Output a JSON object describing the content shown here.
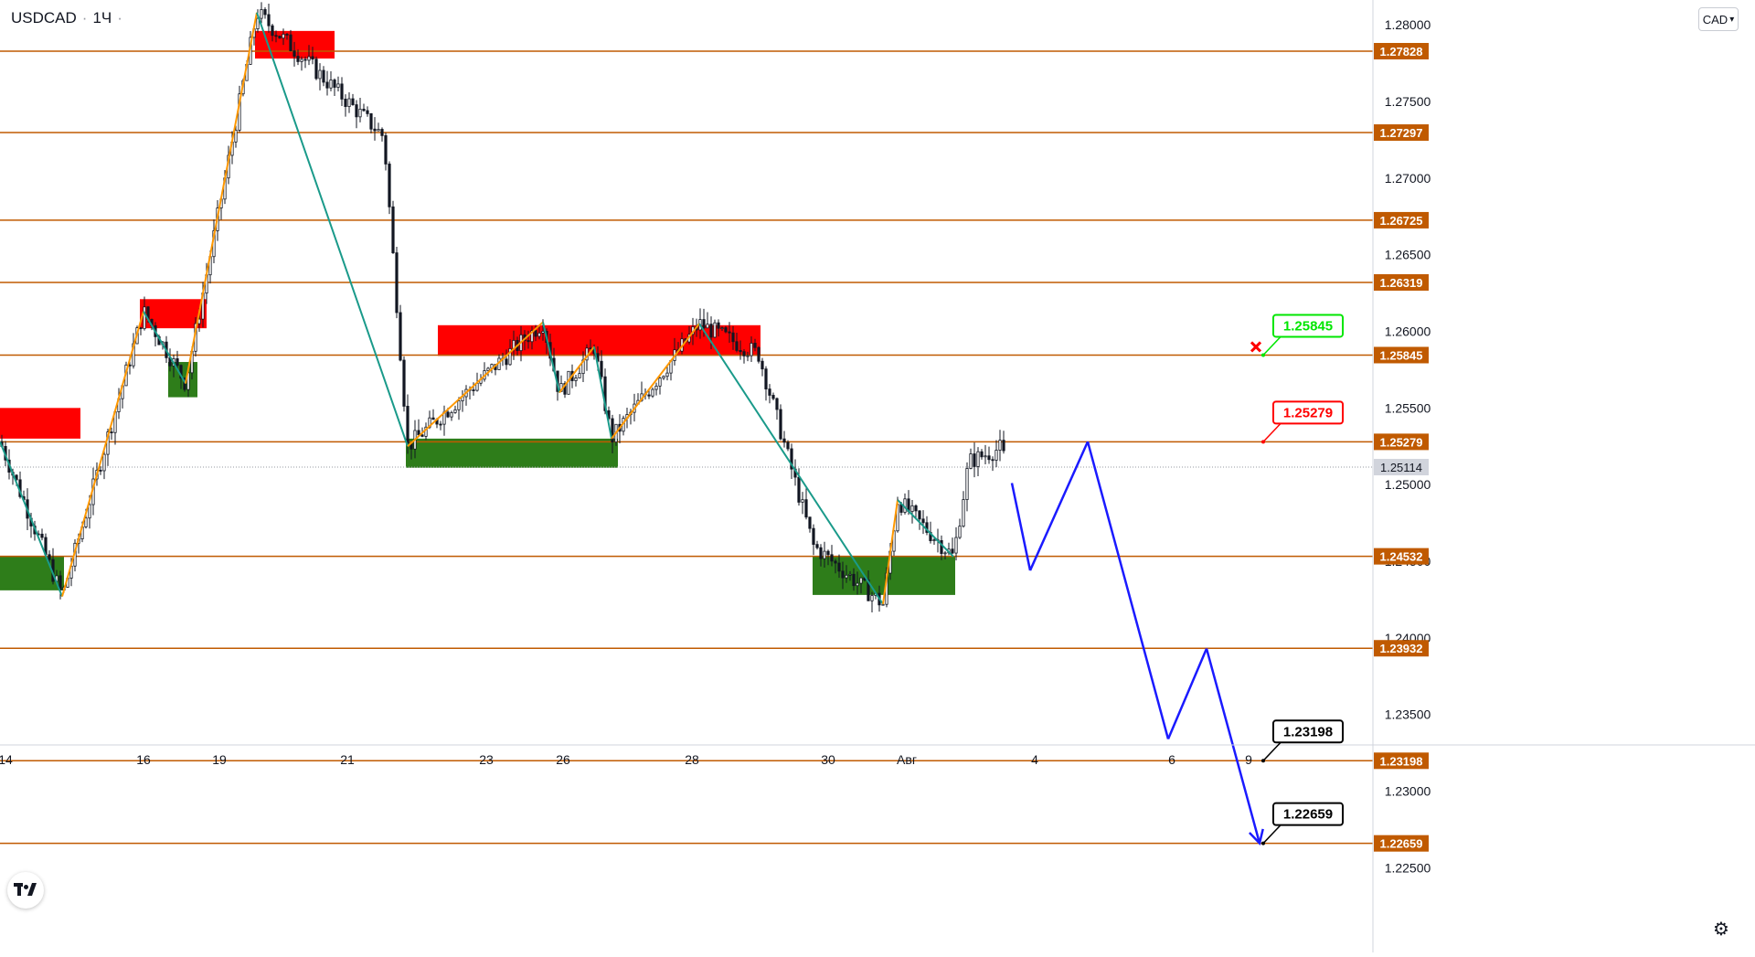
{
  "header": {
    "symbol": "USDCAD",
    "separator": "·",
    "interval": "1Ч",
    "dot_after": "·",
    "currency": "CAD",
    "currency_caret": "▾"
  },
  "colors": {
    "level_line": "#c05a00",
    "level_label_bg": "#c05a00",
    "supply_zone": "#ff0000",
    "demand_zone": "#2e7d1a",
    "zigzag_up": "#ff9800",
    "zigzag_down": "#1a9a8a",
    "forecast": "#1a1aff",
    "candle": "#131722",
    "current_price_bg": "#d1d4dc"
  },
  "chart_data": {
    "type": "candlestick",
    "title": "USDCAD · 1Ч",
    "ylim": [
      1.2218,
      1.2815
    ],
    "x_ticks": [
      "14",
      "16",
      "19",
      "21",
      "23",
      "26",
      "28",
      "30",
      "Авг",
      "4",
      "6",
      "9"
    ],
    "y_ticks": [
      "1.28000",
      "1.27500",
      "1.27000",
      "1.26500",
      "1.26000",
      "1.25500",
      "1.25000",
      "1.24500",
      "1.24000",
      "1.23500",
      "1.23000",
      "1.22500"
    ],
    "horizontal_levels": [
      "1.27828",
      "1.27297",
      "1.26725",
      "1.26319",
      "1.25845",
      "1.25279",
      "1.24532",
      "1.23932",
      "1.23198",
      "1.22659"
    ],
    "current_price": "1.25114",
    "targets": [
      {
        "label": "1.25845",
        "color": "#00e600",
        "level": 1.25845,
        "marker": "cross"
      },
      {
        "label": "1.25279",
        "color": "#ff0000",
        "level": 1.25279
      },
      {
        "label": "1.23198",
        "color": "#000000",
        "level": 1.23198
      },
      {
        "label": "1.22659",
        "color": "#000000",
        "level": 1.22659
      }
    ],
    "supply_zones": [
      {
        "x0": 0,
        "x1": 88,
        "y_top": 1.255,
        "y_bottom": 1.253
      },
      {
        "x0": 153,
        "x1": 226,
        "y_top": 1.2621,
        "y_bottom": 1.2602
      },
      {
        "x0": 279,
        "x1": 366,
        "y_top": 1.2796,
        "y_bottom": 1.2778
      },
      {
        "x0": 479,
        "x1": 832,
        "y_top": 1.2604,
        "y_bottom": 1.2584
      }
    ],
    "demand_zones": [
      {
        "x0": 0,
        "x1": 70,
        "y_top": 1.2453,
        "y_bottom": 1.2431
      },
      {
        "x0": 184,
        "x1": 216,
        "y_top": 1.258,
        "y_bottom": 1.2557
      },
      {
        "x0": 444,
        "x1": 676,
        "y_top": 1.253,
        "y_bottom": 1.2511
      },
      {
        "x0": 889,
        "x1": 1045,
        "y_top": 1.2453,
        "y_bottom": 1.2428
      }
    ],
    "zigzag": [
      {
        "x": 0,
        "y": 1.2528
      },
      {
        "x": 68,
        "y": 1.2427
      },
      {
        "x": 157,
        "y": 1.2613
      },
      {
        "x": 203,
        "y": 1.2566
      },
      {
        "x": 281,
        "y": 1.2808
      },
      {
        "x": 446,
        "y": 1.2525
      },
      {
        "x": 594,
        "y": 1.2606
      },
      {
        "x": 612,
        "y": 1.256
      },
      {
        "x": 650,
        "y": 1.259
      },
      {
        "x": 669,
        "y": 1.253
      },
      {
        "x": 765,
        "y": 1.2605
      },
      {
        "x": 966,
        "y": 1.2422
      },
      {
        "x": 982,
        "y": 1.249
      },
      {
        "x": 1043,
        "y": 1.2453
      }
    ],
    "forecast_path": [
      {
        "x": 1107,
        "y": 1.2501
      },
      {
        "x": 1127,
        "y": 1.2444
      },
      {
        "x": 1190,
        "y": 1.2528
      },
      {
        "x": 1278,
        "y": 1.2334
      },
      {
        "x": 1320,
        "y": 1.2393
      },
      {
        "x": 1378,
        "y": 1.2266
      }
    ]
  }
}
